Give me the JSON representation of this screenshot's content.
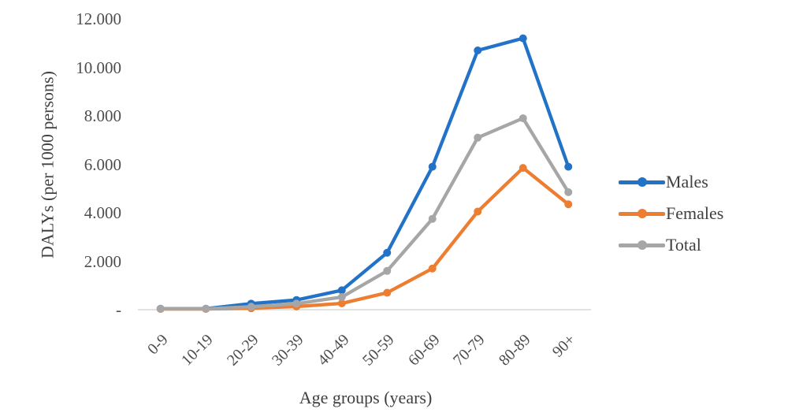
{
  "chart_data": {
    "type": "line",
    "title": "",
    "xlabel": "Age groups (years)",
    "ylabel": "DALYs (per 1000 persons)",
    "categories": [
      "0-9",
      "10-19",
      "20-29",
      "30-39",
      "40-49",
      "50-59",
      "60-69",
      "70-79",
      "80-89",
      "90+"
    ],
    "series": [
      {
        "name": "Males",
        "color": "#2272C8",
        "values": [
          40,
          40,
          250,
          400,
          800,
          2350,
          5900,
          10700,
          11200,
          5900
        ]
      },
      {
        "name": "Females",
        "color": "#ED7D31",
        "values": [
          30,
          30,
          60,
          130,
          260,
          700,
          1700,
          4050,
          5850,
          4350
        ]
      },
      {
        "name": "Total",
        "color": "#A6A6A6",
        "values": [
          35,
          35,
          120,
          250,
          520,
          1600,
          3750,
          7100,
          7900,
          4850
        ]
      }
    ],
    "y_axis": {
      "min": 0,
      "max": 12000,
      "tick_step": 2000,
      "tick_labels": [
        "-",
        "2.000",
        "4.000",
        "6.000",
        "8.000",
        "10.000",
        "12.000"
      ]
    },
    "x_axis": {
      "label_rotation_deg": 45
    },
    "legend": {
      "position": "right"
    },
    "grid": false,
    "colors": {
      "axis_line": "#D9D9D9",
      "tick_text": "#4D4D4D",
      "title_text": "#404040",
      "background": "#FFFFFF"
    }
  }
}
